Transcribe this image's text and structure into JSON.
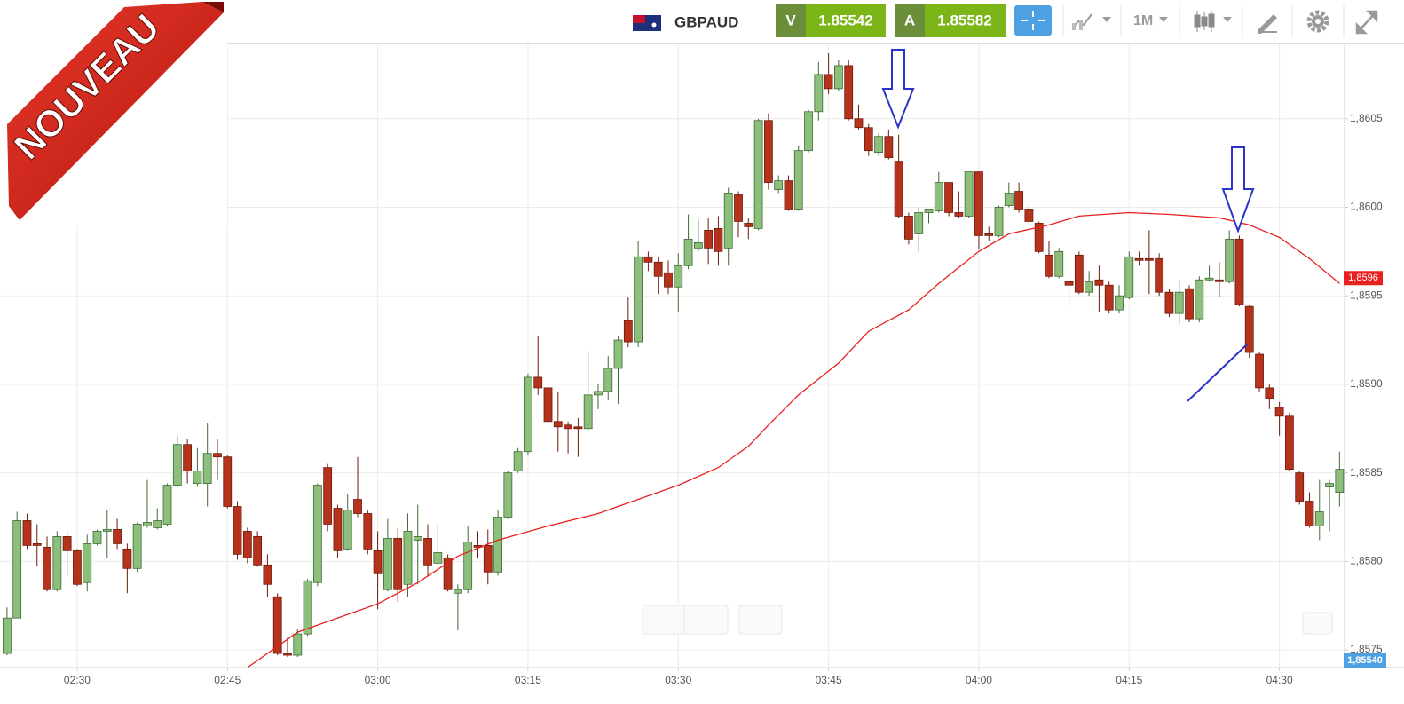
{
  "badge": "NOUVEAU",
  "header": {
    "symbol": "GBPAUD",
    "bid_label": "V",
    "bid": "1.85542",
    "ask_label": "A",
    "ask": "1.85582",
    "timeframe": "1M"
  },
  "chart_data": {
    "type": "candlestick",
    "up_color": "#8cbf7c",
    "down_color": "#b5321c",
    "x": [
      143,
      144,
      145,
      146,
      147,
      148,
      149,
      150,
      151,
      152,
      153,
      154,
      155,
      156,
      157,
      158,
      159,
      160,
      161,
      162,
      163,
      164,
      165,
      166,
      167,
      168,
      169,
      170,
      171,
      172,
      173,
      174,
      175,
      176,
      177,
      178,
      179,
      180,
      181,
      182,
      183,
      184,
      185,
      186,
      187,
      188,
      189,
      190,
      191,
      192,
      193,
      194,
      195,
      196,
      197,
      198,
      199,
      200,
      201,
      202,
      203,
      204,
      205,
      206,
      207,
      208,
      209,
      210,
      211,
      212,
      213,
      214,
      215,
      216,
      217,
      218,
      219,
      220,
      221,
      222,
      223,
      224,
      225,
      226,
      227,
      228,
      229,
      230,
      231,
      232,
      233,
      234,
      235,
      236,
      237,
      238,
      239,
      240,
      241,
      242,
      243,
      244,
      245,
      246,
      247,
      248,
      249,
      250,
      251,
      252,
      253,
      254,
      255,
      256,
      257,
      258,
      259,
      260,
      261,
      262,
      263,
      264,
      265,
      266,
      267,
      268,
      269,
      270,
      271,
      272,
      273,
      274,
      275,
      276
    ],
    "open": [
      1.85748,
      1.85768,
      1.85823,
      1.8581,
      1.85808,
      1.85784,
      1.85814,
      1.85806,
      1.85788,
      1.8581,
      1.85817,
      1.85818,
      1.85807,
      1.85796,
      1.8582,
      1.85819,
      1.85821,
      1.85843,
      1.85866,
      1.85844,
      1.85844,
      1.85861,
      1.85859,
      1.85831,
      1.85817,
      1.85814,
      1.85798,
      1.8578,
      1.85748,
      1.85747,
      1.85759,
      1.85788,
      1.85853,
      1.8583,
      1.85807,
      1.85835,
      1.85827,
      1.85806,
      1.85784,
      1.85813,
      1.85787,
      1.85812,
      1.85813,
      1.85799,
      1.85802,
      1.85782,
      1.85784,
      1.85809,
      1.85809,
      1.85794,
      1.85825,
      1.85851,
      1.85862,
      1.85904,
      1.85898,
      1.85879,
      1.85877,
      1.85876,
      1.85875,
      1.85894,
      1.85896,
      1.85909,
      1.85936,
      1.85924,
      1.85972,
      1.85969,
      1.85963,
      1.85955,
      1.85967,
      1.85977,
      1.85987,
      1.85988,
      1.85977,
      1.86007,
      1.85991,
      1.85988,
      1.86049,
      1.8601,
      1.86015,
      1.85999,
      1.86032,
      1.86054,
      1.86075,
      1.86067,
      1.8608,
      1.8605,
      1.86045,
      1.86031,
      1.8604,
      1.86026,
      1.85995,
      1.85985,
      1.85997,
      1.85998,
      1.86014,
      1.85997,
      1.85995,
      1.8602,
      1.85985,
      1.85984,
      1.86001,
      1.86009,
      1.85999,
      1.85991,
      1.85973,
      1.85961,
      1.85958,
      1.85973,
      1.85952,
      1.85959,
      1.85956,
      1.85942,
      1.85949,
      1.85971,
      1.85971,
      1.85971,
      1.85952,
      1.8594,
      1.85954,
      1.85937,
      1.85959,
      1.85959,
      1.85958,
      1.85982,
      1.85944,
      1.85917,
      1.85898,
      1.85887,
      1.85882,
      1.8585,
      1.85834,
      1.8582,
      1.85842,
      1.85839
    ],
    "high": [
      1.85774,
      1.85828,
      1.85827,
      1.85821,
      1.85814,
      1.85817,
      1.85817,
      1.85807,
      1.85815,
      1.85818,
      1.85829,
      1.85824,
      1.8581,
      1.85822,
      1.85846,
      1.8583,
      1.85844,
      1.85871,
      1.85869,
      1.85864,
      1.85878,
      1.85869,
      1.8586,
      1.85834,
      1.85819,
      1.85817,
      1.85804,
      1.85782,
      1.85757,
      1.85762,
      1.8579,
      1.85844,
      1.85855,
      1.85832,
      1.85838,
      1.85859,
      1.85829,
      1.85817,
      1.85824,
      1.85819,
      1.85827,
      1.85832,
      1.85821,
      1.85821,
      1.85804,
      1.85787,
      1.8582,
      1.85817,
      1.85818,
      1.85829,
      1.85851,
      1.85864,
      1.85906,
      1.85927,
      1.85904,
      1.85896,
      1.85879,
      1.85881,
      1.85919,
      1.859,
      1.85916,
      1.85927,
      1.85949,
      1.85981,
      1.85975,
      1.85972,
      1.8597,
      1.85974,
      1.85996,
      1.85993,
      1.85994,
      1.85995,
      1.86011,
      1.86009,
      1.85994,
      1.8605,
      1.86053,
      1.86018,
      1.86018,
      1.86035,
      1.86055,
      1.86082,
      1.86087,
      1.86083,
      1.86083,
      1.86058,
      1.86047,
      1.86042,
      1.86044,
      1.86041,
      1.85997,
      1.86,
      1.85999,
      1.8602,
      1.86014,
      1.86009,
      1.8602,
      1.8602,
      1.85989,
      1.86001,
      1.86014,
      1.86014,
      1.86001,
      1.85992,
      1.85981,
      1.85977,
      1.85961,
      1.85975,
      1.85964,
      1.85967,
      1.85958,
      1.85956,
      1.85975,
      1.85975,
      1.85987,
      1.85974,
      1.85954,
      1.85959,
      1.85956,
      1.85961,
      1.85967,
      1.85969,
      1.85987,
      1.85984,
      1.85945,
      1.85918,
      1.859,
      1.8589,
      1.85884,
      1.85851,
      1.85839,
      1.85846,
      1.85846,
      1.85862
    ],
    "low": [
      1.85747,
      1.85768,
      1.85807,
      1.85797,
      1.85783,
      1.85783,
      1.85792,
      1.85786,
      1.85783,
      1.85809,
      1.85802,
      1.85807,
      1.85782,
      1.85794,
      1.85819,
      1.85818,
      1.8582,
      1.85842,
      1.85844,
      1.85842,
      1.85831,
      1.85846,
      1.8583,
      1.85801,
      1.85799,
      1.85797,
      1.8578,
      1.85747,
      1.85746,
      1.85746,
      1.85758,
      1.85786,
      1.85817,
      1.85802,
      1.85806,
      1.85825,
      1.85804,
      1.85773,
      1.85783,
      1.85777,
      1.8578,
      1.85787,
      1.85792,
      1.85798,
      1.85783,
      1.85761,
      1.85782,
      1.85802,
      1.85787,
      1.85792,
      1.85824,
      1.8585,
      1.8586,
      1.85894,
      1.85866,
      1.85862,
      1.85861,
      1.85859,
      1.85873,
      1.85886,
      1.85891,
      1.85889,
      1.85921,
      1.85921,
      1.85964,
      1.85951,
      1.85951,
      1.85941,
      1.85965,
      1.85975,
      1.85968,
      1.85967,
      1.85967,
      1.85983,
      1.85982,
      1.85987,
      1.8601,
      1.86008,
      1.85998,
      1.85998,
      1.86031,
      1.86049,
      1.86064,
      1.86066,
      1.86049,
      1.86044,
      1.86029,
      1.86029,
      1.86027,
      1.85994,
      1.85979,
      1.85975,
      1.85991,
      1.85997,
      1.85995,
      1.85994,
      1.85994,
      1.85976,
      1.85981,
      1.85983,
      1.86,
      1.85997,
      1.8599,
      1.85974,
      1.8596,
      1.8596,
      1.85944,
      1.85951,
      1.8595,
      1.85941,
      1.8594,
      1.8594,
      1.85948,
      1.85967,
      1.85951,
      1.8595,
      1.85938,
      1.85934,
      1.85935,
      1.85935,
      1.85958,
      1.85949,
      1.85957,
      1.85944,
      1.85915,
      1.85896,
      1.85886,
      1.85871,
      1.85851,
      1.85832,
      1.85819,
      1.85812,
      1.85817,
      1.85831
    ],
    "close": [
      1.85768,
      1.85823,
      1.85809,
      1.85809,
      1.85784,
      1.85814,
      1.85806,
      1.85787,
      1.8581,
      1.85817,
      1.85818,
      1.8581,
      1.85796,
      1.85821,
      1.85822,
      1.85823,
      1.85843,
      1.85866,
      1.85851,
      1.85851,
      1.85861,
      1.85859,
      1.85831,
      1.85804,
      1.85802,
      1.85798,
      1.85787,
      1.85748,
      1.85747,
      1.85759,
      1.85789,
      1.85843,
      1.85821,
      1.85806,
      1.85829,
      1.85827,
      1.85807,
      1.85793,
      1.85813,
      1.85784,
      1.85817,
      1.85814,
      1.85798,
      1.85805,
      1.85784,
      1.85784,
      1.85811,
      1.85808,
      1.85794,
      1.85825,
      1.8585,
      1.85862,
      1.85904,
      1.85898,
      1.85879,
      1.85876,
      1.85875,
      1.85875,
      1.85894,
      1.85896,
      1.85909,
      1.85925,
      1.85924,
      1.85972,
      1.85969,
      1.85961,
      1.85955,
      1.85967,
      1.85982,
      1.8598,
      1.85977,
      1.85975,
      1.86008,
      1.85992,
      1.85989,
      1.86049,
      1.86014,
      1.86015,
      1.85999,
      1.86032,
      1.86054,
      1.86075,
      1.86067,
      1.8608,
      1.8605,
      1.86045,
      1.86032,
      1.8604,
      1.86028,
      1.85995,
      1.85982,
      1.85997,
      1.85999,
      1.86014,
      1.85997,
      1.85995,
      1.8602,
      1.85984,
      1.85984,
      1.86,
      1.86008,
      1.85999,
      1.85992,
      1.85975,
      1.85961,
      1.85975,
      1.85956,
      1.85952,
      1.85958,
      1.85956,
      1.85942,
      1.8595,
      1.85972,
      1.8597,
      1.8597,
      1.85952,
      1.8594,
      1.85952,
      1.85937,
      1.85959,
      1.8596,
      1.85958,
      1.85982,
      1.85945,
      1.85918,
      1.85898,
      1.85892,
      1.85882,
      1.85852,
      1.85834,
      1.8582,
      1.85828,
      1.85844,
      1.85852
    ],
    "moving_average": {
      "color": "#e8201f",
      "x": [
        167,
        172,
        180,
        184,
        188,
        192,
        197,
        202,
        206,
        210,
        214,
        217,
        219,
        222,
        226,
        229,
        233,
        236,
        240,
        243,
        247,
        250,
        255,
        259,
        264,
        267,
        270,
        273,
        276
      ],
      "values": [
        1.8574,
        1.8576,
        1.85776,
        1.85788,
        1.85803,
        1.85812,
        1.8582,
        1.85827,
        1.85835,
        1.85843,
        1.85853,
        1.85865,
        1.85877,
        1.85894,
        1.85912,
        1.8593,
        1.85942,
        1.85957,
        1.85975,
        1.85985,
        1.8599,
        1.85995,
        1.85997,
        1.85996,
        1.85994,
        1.8599,
        1.85983,
        1.85971,
        1.85957
      ]
    },
    "ma_label": {
      "value": 1.8596,
      "label": "1,8596"
    },
    "price_tag": "1,85540",
    "xlim": [
      142.3,
      276.5
    ],
    "xticks": [
      {
        "value": 150,
        "label": "02:30"
      },
      {
        "value": 165,
        "label": "02:45"
      },
      {
        "value": 180,
        "label": "03:00"
      },
      {
        "value": 195,
        "label": "03:15"
      },
      {
        "value": 210,
        "label": "03:30"
      },
      {
        "value": 225,
        "label": "03:45"
      },
      {
        "value": 240,
        "label": "04:00"
      },
      {
        "value": 255,
        "label": "04:15"
      },
      {
        "value": 270,
        "label": "04:30"
      }
    ],
    "ylim": [
      1.8574,
      1.86092
    ],
    "yticks": [
      {
        "value": 1.8575,
        "label": "1,8575"
      },
      {
        "value": 1.858,
        "label": "1,8580"
      },
      {
        "value": 1.8585,
        "label": "1,8585"
      },
      {
        "value": 1.859,
        "label": "1,8590"
      },
      {
        "value": 1.8595,
        "label": "1,8595"
      },
      {
        "value": 1.86,
        "label": "1,8600"
      },
      {
        "value": 1.8605,
        "label": "1,8605"
      }
    ],
    "grid": true
  }
}
